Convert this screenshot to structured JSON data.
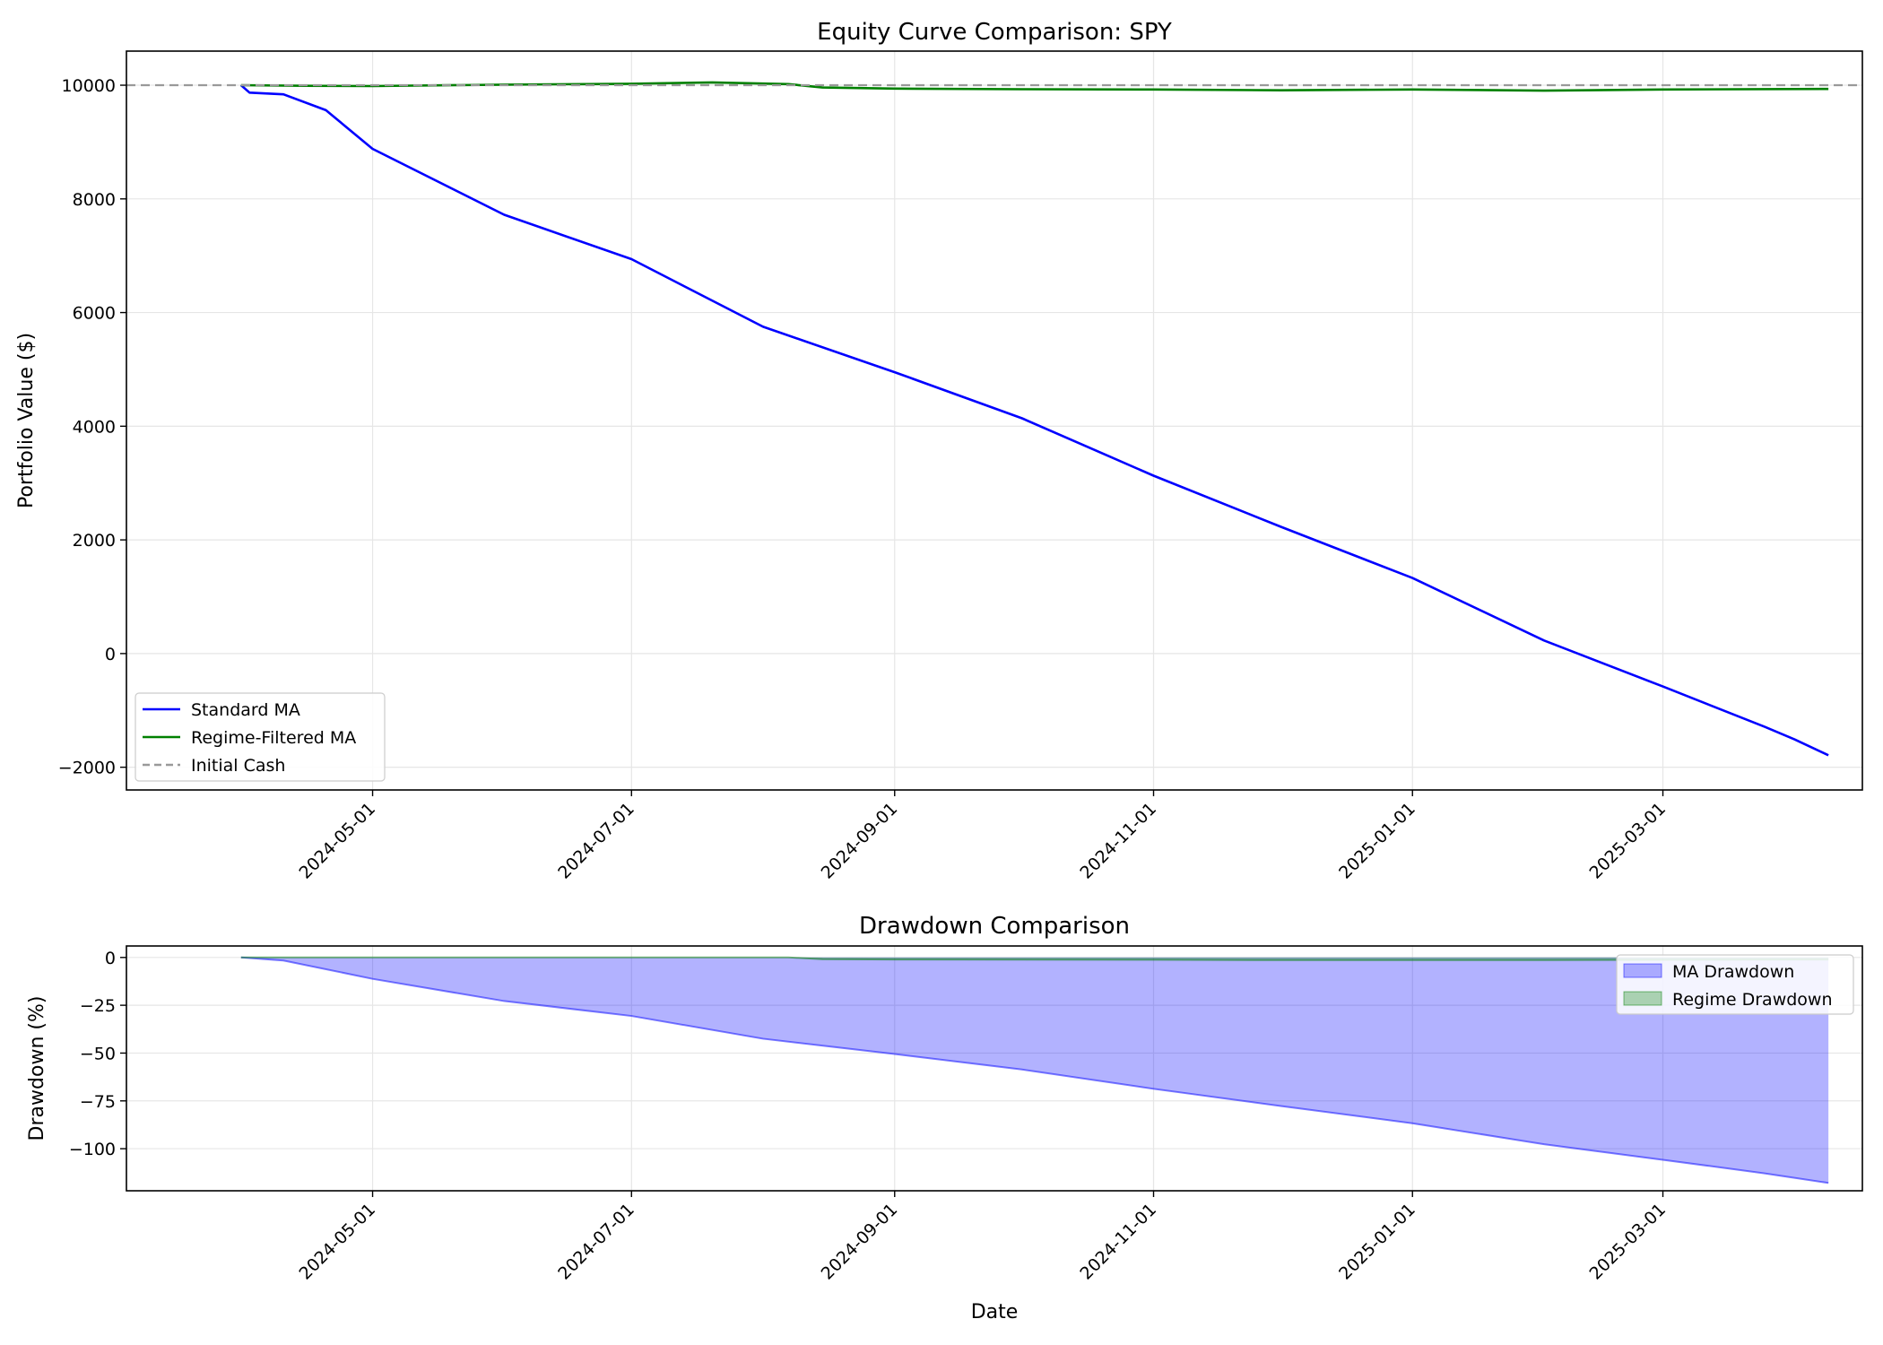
{
  "chart_data": [
    {
      "type": "line",
      "title": "Equity Curve Comparison: SPY",
      "xlabel": "",
      "ylabel": "Portfolio Value ($)",
      "x_range": [
        "2024-03-04",
        "2025-04-17"
      ],
      "ylim": [
        -2400,
        10600
      ],
      "y_ticks": [
        -2000,
        0,
        2000,
        4000,
        6000,
        8000,
        10000
      ],
      "y_tick_labels": [
        "−2000",
        "0",
        "2000",
        "4000",
        "6000",
        "8000",
        "10000"
      ],
      "x_ticks": [
        "2024-05-01",
        "2024-07-01",
        "2024-09-01",
        "2024-11-01",
        "2025-01-01",
        "2025-03-01"
      ],
      "x_tick_labels": [
        "2024-05-01",
        "2024-07-01",
        "2024-09-01",
        "2024-11-01",
        "2025-01-01",
        "2025-03-01"
      ],
      "grid": true,
      "legend": "lower-left",
      "series": [
        {
          "name": "Standard MA",
          "color": "#0000ff",
          "style": "solid",
          "points": [
            [
              "2024-03-31",
              10000
            ],
            [
              "2024-04-02",
              9870
            ],
            [
              "2024-04-10",
              9840
            ],
            [
              "2024-04-20",
              9560
            ],
            [
              "2024-05-01",
              8880
            ],
            [
              "2024-06-01",
              7720
            ],
            [
              "2024-07-01",
              6940
            ],
            [
              "2024-08-01",
              5750
            ],
            [
              "2024-09-01",
              4950
            ],
            [
              "2024-10-01",
              4140
            ],
            [
              "2024-11-01",
              3130
            ],
            [
              "2024-12-01",
              2230
            ],
            [
              "2025-01-01",
              1330
            ],
            [
              "2025-02-01",
              230
            ],
            [
              "2025-03-01",
              -580
            ],
            [
              "2025-03-25",
              -1290
            ],
            [
              "2025-04-01",
              -1510
            ],
            [
              "2025-04-09",
              -1790
            ]
          ]
        },
        {
          "name": "Regime-Filtered MA",
          "color": "#008000",
          "style": "solid",
          "points": [
            [
              "2024-03-31",
              10000
            ],
            [
              "2024-04-15",
              9990
            ],
            [
              "2024-05-01",
              9985
            ],
            [
              "2024-06-01",
              10010
            ],
            [
              "2024-07-01",
              10025
            ],
            [
              "2024-07-20",
              10050
            ],
            [
              "2024-08-07",
              10020
            ],
            [
              "2024-08-15",
              9960
            ],
            [
              "2024-09-01",
              9940
            ],
            [
              "2024-10-01",
              9930
            ],
            [
              "2024-11-01",
              9925
            ],
            [
              "2024-12-01",
              9910
            ],
            [
              "2025-01-01",
              9925
            ],
            [
              "2025-02-01",
              9905
            ],
            [
              "2025-03-01",
              9925
            ],
            [
              "2025-04-09",
              9935
            ]
          ]
        },
        {
          "name": "Initial Cash",
          "color": "#999999",
          "style": "dashed",
          "horizontal_y": 10000
        }
      ]
    },
    {
      "type": "area",
      "title": "Drawdown Comparison",
      "xlabel": "Date",
      "ylabel": "Drawdown (%)",
      "x_range": [
        "2024-03-04",
        "2025-04-17"
      ],
      "ylim": [
        -122,
        6
      ],
      "y_ticks": [
        -100,
        -75,
        -50,
        -25,
        0
      ],
      "y_tick_labels": [
        "−100",
        "−75",
        "−50",
        "−25",
        "0"
      ],
      "x_ticks": [
        "2024-05-01",
        "2024-07-01",
        "2024-09-01",
        "2024-11-01",
        "2025-01-01",
        "2025-03-01"
      ],
      "x_tick_labels": [
        "2024-05-01",
        "2024-07-01",
        "2024-09-01",
        "2024-11-01",
        "2025-01-01",
        "2025-03-01"
      ],
      "grid": true,
      "legend": "top-right",
      "series": [
        {
          "name": "MA Drawdown",
          "color": "#0000ff",
          "points": [
            [
              "2024-03-31",
              0
            ],
            [
              "2024-04-10",
              -1.6
            ],
            [
              "2024-05-01",
              -11.2
            ],
            [
              "2024-06-01",
              -22.8
            ],
            [
              "2024-07-01",
              -30.6
            ],
            [
              "2024-08-01",
              -42.5
            ],
            [
              "2024-09-01",
              -50.5
            ],
            [
              "2024-10-01",
              -58.6
            ],
            [
              "2024-11-01",
              -68.7
            ],
            [
              "2024-12-01",
              -77.7
            ],
            [
              "2025-01-01",
              -86.7
            ],
            [
              "2025-02-01",
              -97.7
            ],
            [
              "2025-03-01",
              -105.8
            ],
            [
              "2025-03-25",
              -112.9
            ],
            [
              "2025-04-09",
              -117.9
            ]
          ]
        },
        {
          "name": "Regime Drawdown",
          "color": "#008000",
          "points": [
            [
              "2024-03-31",
              0
            ],
            [
              "2024-08-07",
              0
            ],
            [
              "2024-08-15",
              -0.9
            ],
            [
              "2024-09-01",
              -1.1
            ],
            [
              "2024-11-01",
              -1.2
            ],
            [
              "2024-12-01",
              -1.4
            ],
            [
              "2025-02-01",
              -1.4
            ],
            [
              "2025-04-09",
              -1.1
            ]
          ]
        }
      ]
    }
  ]
}
